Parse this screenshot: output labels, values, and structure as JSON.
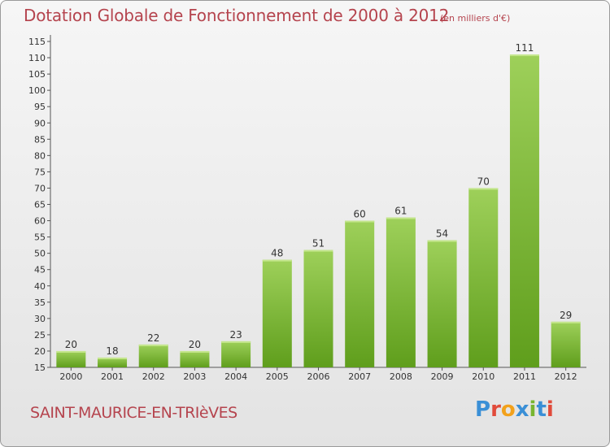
{
  "header": {
    "title": "Dotation Globale de Fonctionnement de 2000 à 2012",
    "subtitle": "(en milliers d'€)"
  },
  "footer": {
    "commune": "SAINT-MAURICE-EN-TRIèVES",
    "logo_text": "Proxiti"
  },
  "colors": {
    "title": "#b5444e",
    "bar_top": "#9ed05a",
    "bar_bottom": "#5f9e1c",
    "logo_letters": [
      "#3a8fd6",
      "#e14b3b",
      "#f2a11b",
      "#3a8fd6",
      "#78b530",
      "#3a8fd6",
      "#e14b3b"
    ]
  },
  "chart_data": {
    "type": "bar",
    "title": "Dotation Globale de Fonctionnement de 2000 à 2012",
    "unit": "(en milliers d'€)",
    "categories": [
      "2000",
      "2001",
      "2002",
      "2003",
      "2004",
      "2005",
      "2006",
      "2007",
      "2008",
      "2009",
      "2010",
      "2011",
      "2012"
    ],
    "values": [
      20,
      18,
      22,
      20,
      23,
      48,
      51,
      60,
      61,
      54,
      70,
      111,
      29
    ],
    "ylim": [
      15,
      115
    ],
    "ytick_step": 5,
    "grid": false,
    "data_labels": true
  }
}
